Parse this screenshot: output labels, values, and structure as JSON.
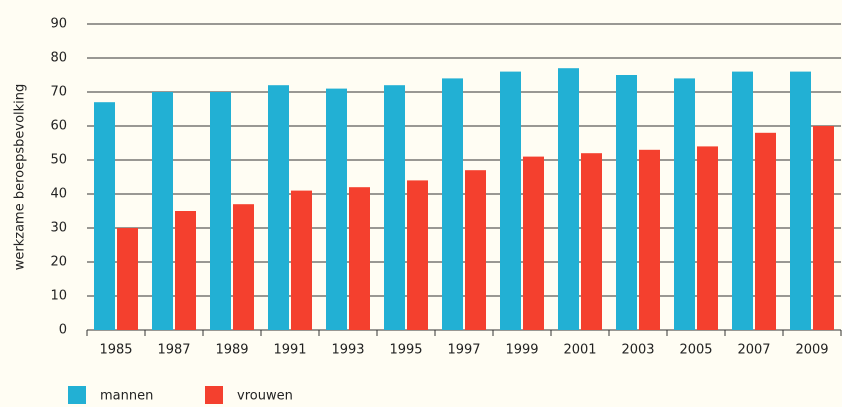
{
  "chart_data": {
    "type": "bar",
    "y_label": "werkzame beroepsbevolking",
    "categories": [
      "1985",
      "1987",
      "1989",
      "1991",
      "1993",
      "1995",
      "1997",
      "1999",
      "2001",
      "2003",
      "2005",
      "2007",
      "2009"
    ],
    "series": [
      {
        "name": "mannen",
        "color": "#22b0d4",
        "values": [
          67,
          70,
          70,
          72,
          71,
          72,
          74,
          76,
          77,
          75,
          74,
          76,
          76
        ]
      },
      {
        "name": "vrouwen",
        "color": "#f4402e",
        "values": [
          30,
          35,
          37,
          41,
          42,
          44,
          47,
          51,
          52,
          53,
          54,
          58,
          60
        ]
      }
    ],
    "ylim": [
      0,
      90
    ],
    "yticks": [
      0,
      10,
      20,
      30,
      40,
      50,
      60,
      70,
      80,
      90
    ],
    "grid": true,
    "legend": "bottom"
  }
}
